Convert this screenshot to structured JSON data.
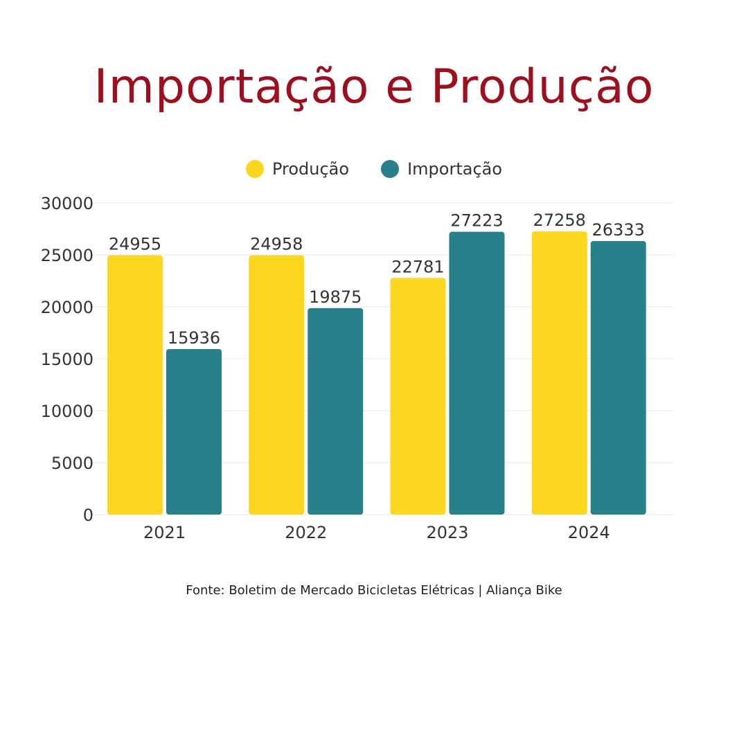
{
  "colors": {
    "title": "#9b0f1e",
    "producao": "#fbd71f",
    "importacao": "#28808a",
    "grid": "#e8e8e8",
    "text": "#333333"
  },
  "chart_data": {
    "type": "bar",
    "title": "Importação e Produção",
    "categories": [
      "2021",
      "2022",
      "2023",
      "2024"
    ],
    "series": [
      {
        "name": "Produção",
        "values": [
          24955,
          24958,
          22781,
          27258
        ]
      },
      {
        "name": "Importação",
        "values": [
          15936,
          19875,
          27223,
          26333
        ]
      }
    ],
    "ylim": [
      0,
      30000
    ],
    "yticks": [
      "0",
      "5000",
      "10000",
      "15000",
      "20000",
      "25000",
      "30000"
    ],
    "grid": true,
    "legend": "top-center",
    "data_labels": true
  },
  "legend": {
    "producao_label": "Produção",
    "importacao_label": "Importação"
  },
  "source": "Fonte: Boletim de Mercado Bicicletas Elétricas | Aliança Bike"
}
